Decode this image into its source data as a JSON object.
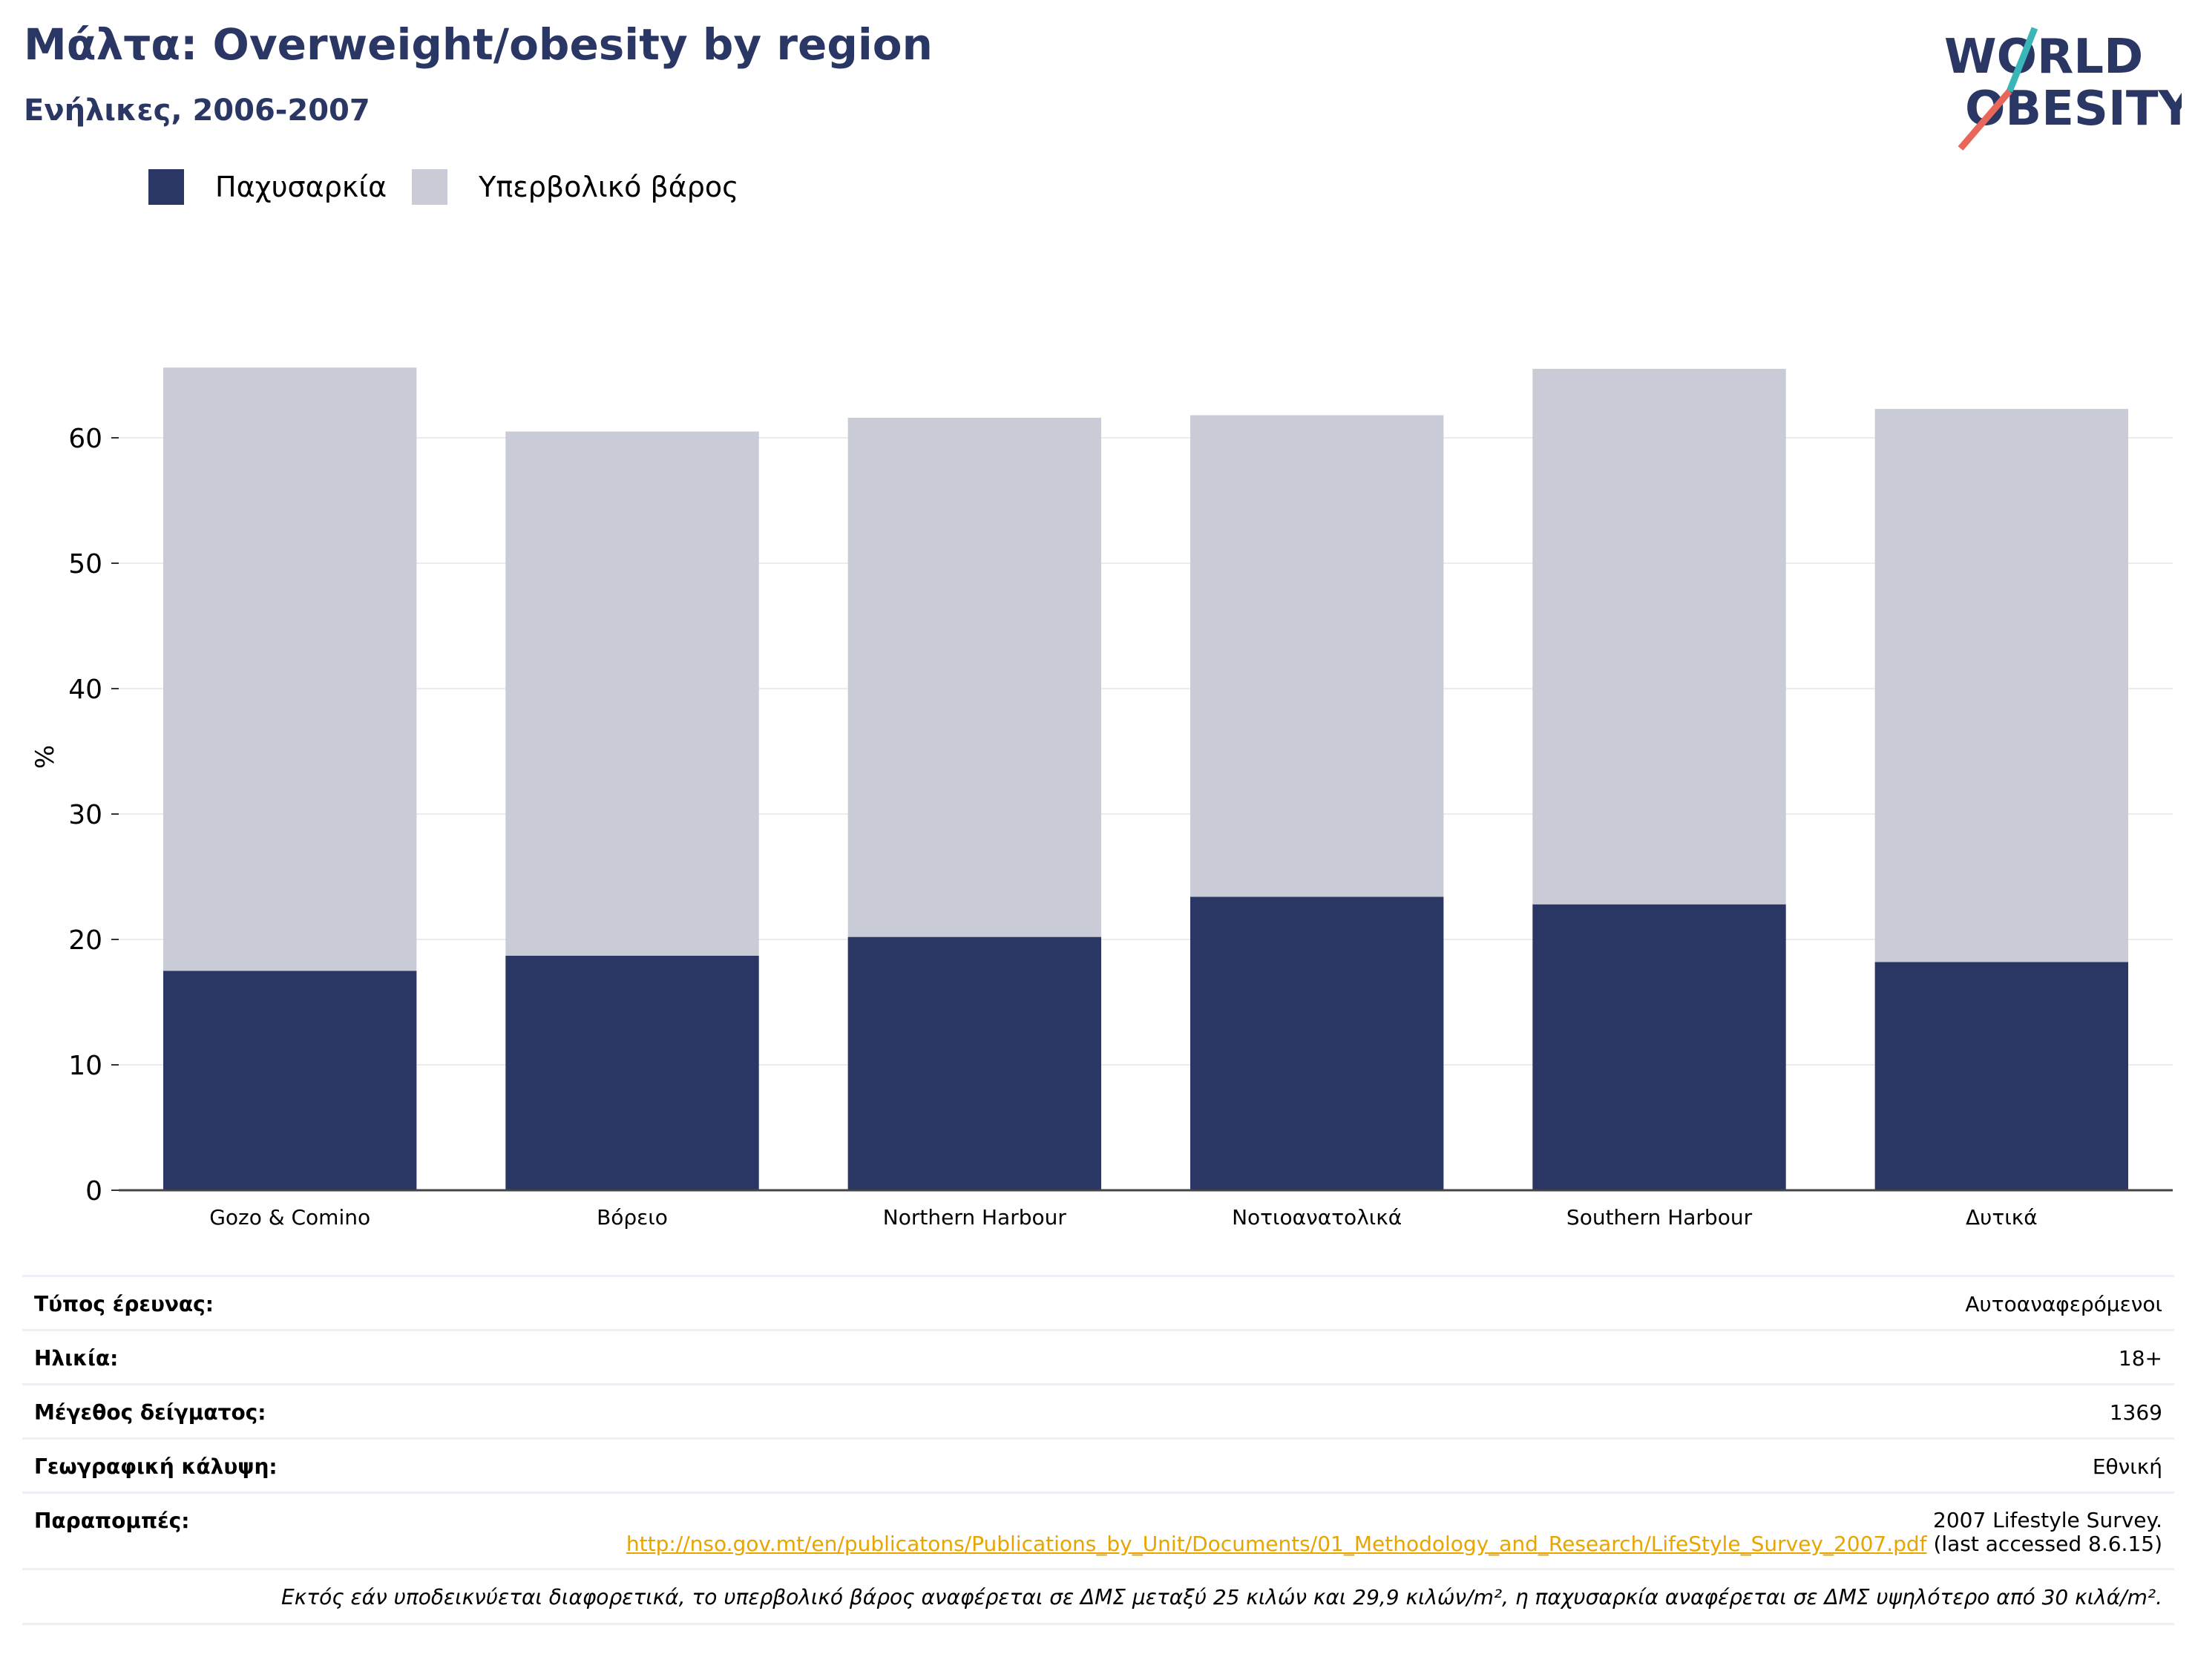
{
  "header": {
    "title": "Μάλτα: Overweight/obesity by region",
    "subtitle": "Ενήλικες, 2006-2007"
  },
  "logo": {
    "line1": "WORLD",
    "line2": "OBESITY",
    "colors": {
      "text": "#2a3664",
      "slash_red": "#e8665a",
      "slash_teal": "#3ab6b8"
    }
  },
  "legend": {
    "items": [
      {
        "label": "Παχυσαρκία",
        "color": "#2a3664"
      },
      {
        "label": "Υπερβολικό βάρος",
        "color": "#c9cbd6"
      }
    ]
  },
  "chart_data": {
    "type": "bar",
    "stacked": true,
    "categories": [
      "Gozo & Comino",
      "Βόρειο",
      "Northern Harbour",
      "Νοτιοανατολικά",
      "Southern Harbour",
      "Δυτικά"
    ],
    "series": [
      {
        "name": "Παχυσαρκία",
        "color": "#2a3664",
        "values": [
          17.5,
          18.7,
          20.2,
          23.4,
          22.8,
          18.2
        ]
      },
      {
        "name": "Υπερβολικό βάρος",
        "color": "#c9cbd6",
        "values": [
          48.1,
          41.8,
          41.4,
          38.4,
          42.7,
          44.1
        ]
      }
    ],
    "ylabel": "%",
    "xlabel": "",
    "ylim": [
      0,
      70
    ],
    "yticks": [
      0,
      10,
      20,
      30,
      40,
      50,
      60
    ],
    "grid": true,
    "legend_position": "top-left"
  },
  "info": {
    "rows": [
      {
        "label": "Τύπος έρευνας:",
        "value": "Αυτοαναφερόμενοι"
      },
      {
        "label": "Ηλικία:",
        "value": "18+"
      },
      {
        "label": "Μέγεθος δείγματος:",
        "value": "1369"
      },
      {
        "label": "Γεωγραφική κάλυψη:",
        "value": "Εθνική"
      }
    ],
    "references": {
      "label": "Παραπομπές:",
      "text_before": "2007 Lifestyle Survey.",
      "link": "http://nso.gov.mt/en/publicatons/Publications_by_Unit/Documents/01_Methodology_and_Research/LifeStyle_Survey_2007.pdf",
      "text_after": "(last accessed 8.6.15)"
    },
    "note": "Εκτός εάν υποδεικνύεται διαφορετικά, το υπερβολικό βάρος αναφέρεται σε ΔΜΣ μεταξύ 25 κιλών και 29,9 κιλών/m², η παχυσαρκία αναφέρεται σε ΔΜΣ υψηλότερο από 30 κιλά/m²."
  }
}
